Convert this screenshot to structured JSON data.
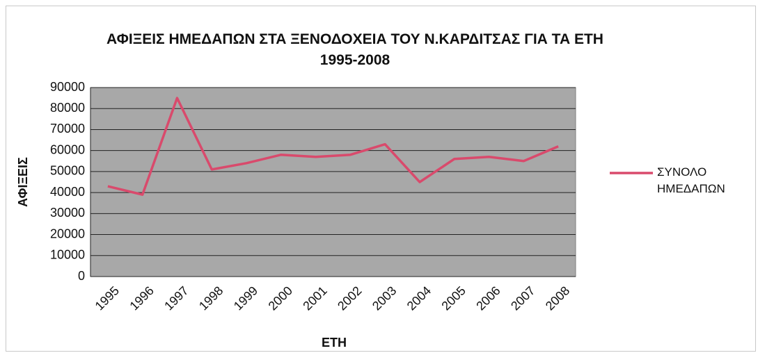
{
  "chart_data": {
    "type": "line",
    "title": "ΑΦΙΞΕΙΣ ΗΜΕΔΑΠΩΝ ΣΤΑ ΞΕΝΟΔΟΧΕΙΑ ΤΟΥ Ν.ΚΑΡΔΙΤΣΑΣ ΓΙΑ ΤΑ ΕΤΗ 1995-2008",
    "x_label": "ΕΤΗ",
    "y_label": "ΑΦΙΞΕΙΣ",
    "categories": [
      "1995",
      "1996",
      "1997",
      "1998",
      "1999",
      "2000",
      "2001",
      "2002",
      "2003",
      "2004",
      "2005",
      "2006",
      "2007",
      "2008"
    ],
    "series": [
      {
        "name": "ΣΥΝΟΛΟ ΗΜΕΔΑΠΩΝ",
        "color": "#d94a6c",
        "values": [
          43000,
          39000,
          85000,
          51000,
          54000,
          58000,
          57000,
          58000,
          63000,
          45000,
          56000,
          57000,
          55000,
          62000
        ]
      }
    ],
    "ylim": [
      0,
      90000
    ],
    "yticks": [
      0,
      10000,
      20000,
      30000,
      40000,
      50000,
      60000,
      70000,
      80000,
      90000
    ],
    "grid": true,
    "legend": "right"
  }
}
